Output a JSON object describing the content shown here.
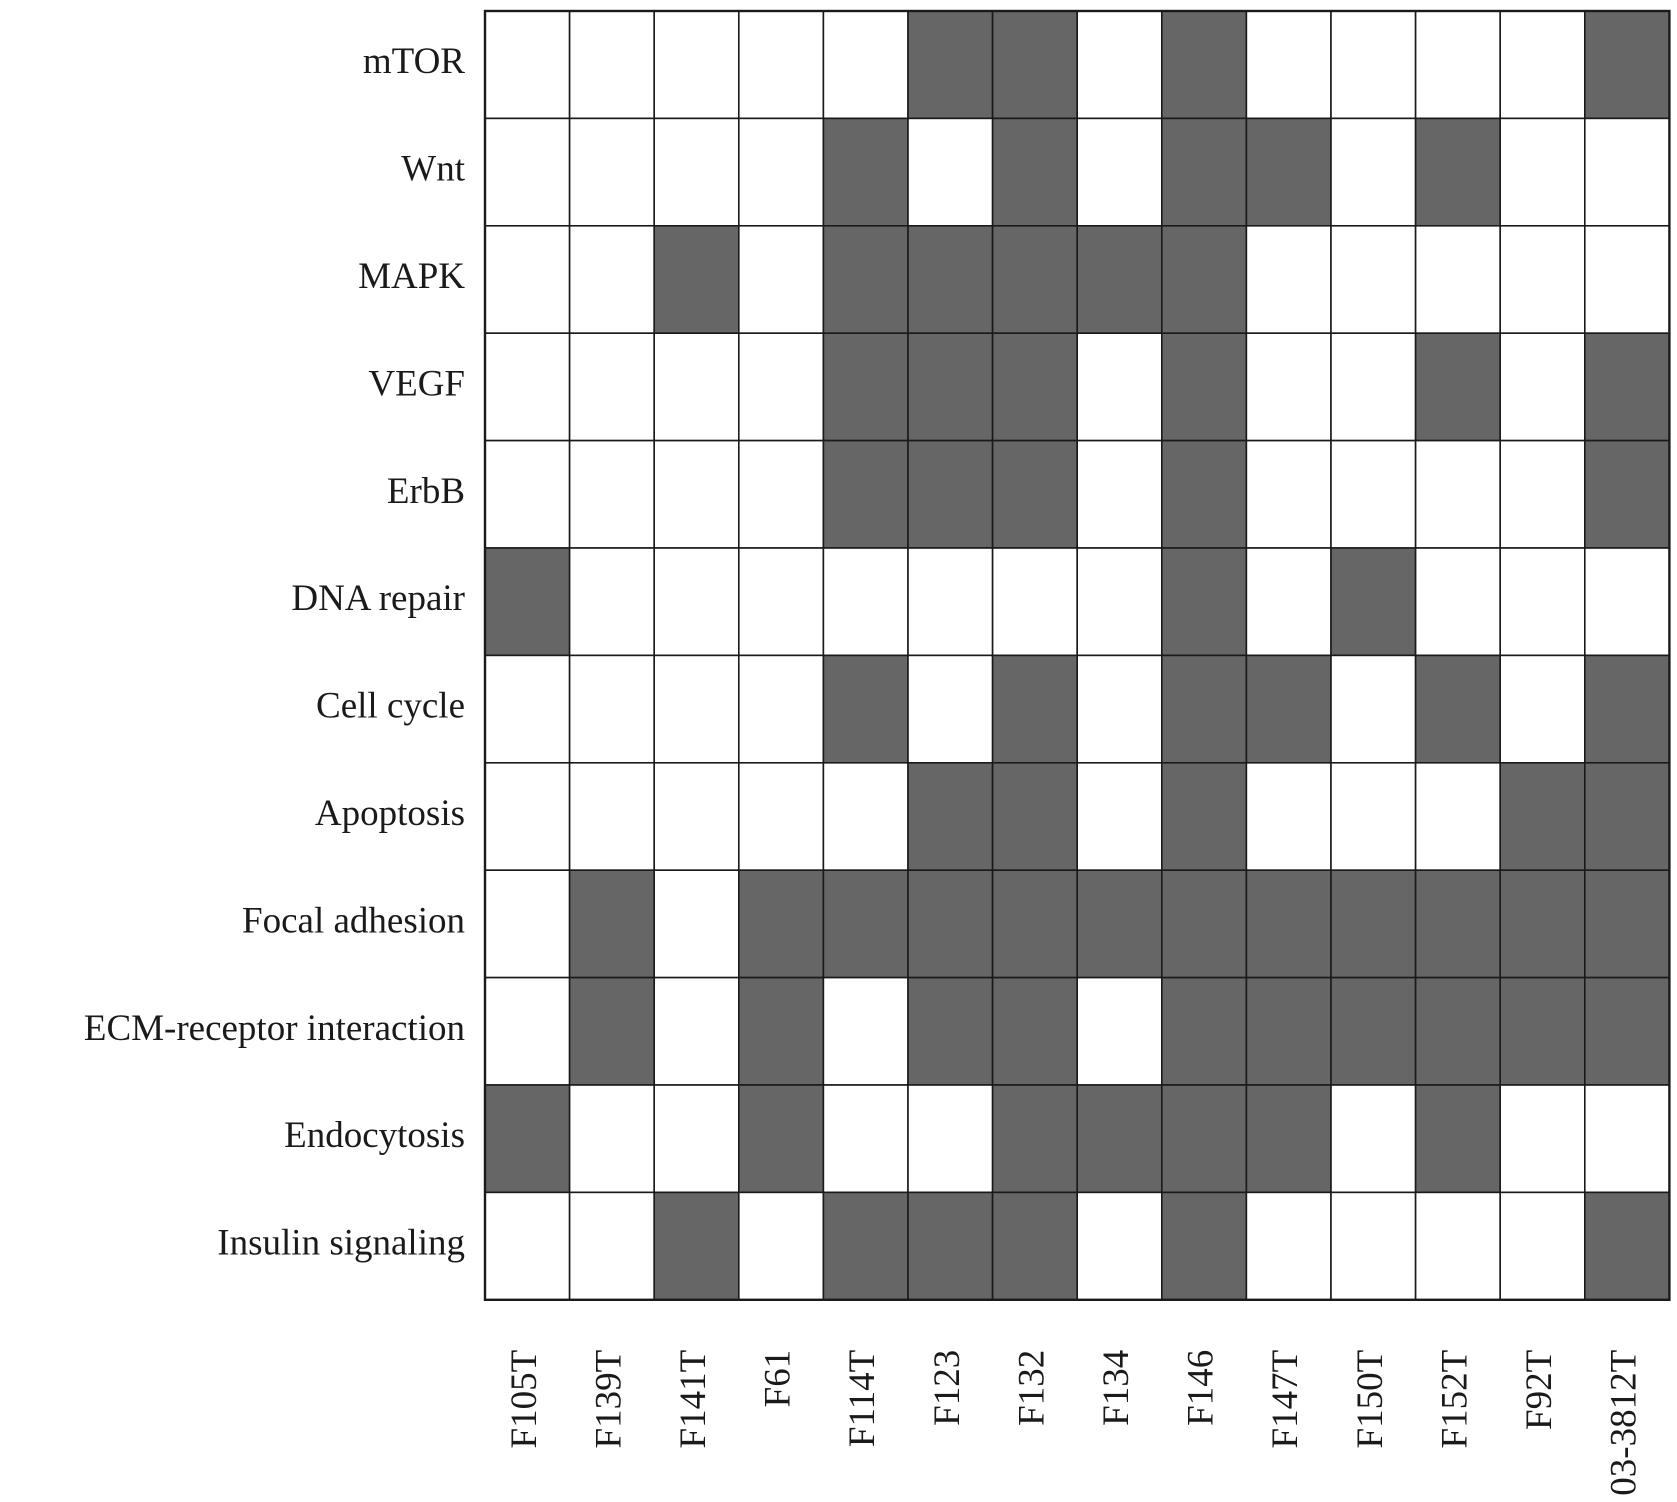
{
  "chart_data": {
    "type": "heatmap",
    "title": "",
    "xlabel": "",
    "ylabel": "",
    "grid": true,
    "colors": {
      "present": "#666666",
      "absent": "#ffffff",
      "border": "#1a1a1a"
    },
    "rows": [
      "mTOR",
      "Wnt",
      "MAPK",
      "VEGF",
      "ErbB",
      "DNA repair",
      "Cell cycle",
      "Apoptosis",
      "Focal adhesion",
      "ECM-receptor interaction",
      "Endocytosis",
      "Insulin signaling"
    ],
    "columns": [
      "F105T",
      "F139T",
      "F141T",
      "F61",
      "F114T",
      "F123",
      "F132",
      "F134",
      "F146",
      "F147T",
      "F150T",
      "F152T",
      "F92T",
      "03-3812T"
    ],
    "values": [
      [
        0,
        0,
        0,
        0,
        0,
        1,
        1,
        0,
        1,
        0,
        0,
        0,
        0,
        1
      ],
      [
        0,
        0,
        0,
        0,
        1,
        0,
        1,
        0,
        1,
        1,
        0,
        1,
        0,
        0
      ],
      [
        0,
        0,
        1,
        0,
        1,
        1,
        1,
        1,
        1,
        0,
        0,
        0,
        0,
        0
      ],
      [
        0,
        0,
        0,
        0,
        1,
        1,
        1,
        0,
        1,
        0,
        0,
        1,
        0,
        1
      ],
      [
        0,
        0,
        0,
        0,
        1,
        1,
        1,
        0,
        1,
        0,
        0,
        0,
        0,
        1
      ],
      [
        1,
        0,
        0,
        0,
        0,
        0,
        0,
        0,
        1,
        0,
        1,
        0,
        0,
        0
      ],
      [
        0,
        0,
        0,
        0,
        1,
        0,
        1,
        0,
        1,
        1,
        0,
        1,
        0,
        1
      ],
      [
        0,
        0,
        0,
        0,
        0,
        1,
        1,
        0,
        1,
        0,
        0,
        0,
        1,
        1
      ],
      [
        0,
        1,
        0,
        1,
        1,
        1,
        1,
        1,
        1,
        1,
        1,
        1,
        1,
        1
      ],
      [
        0,
        1,
        0,
        1,
        0,
        1,
        1,
        0,
        1,
        1,
        1,
        1,
        1,
        1
      ],
      [
        1,
        0,
        0,
        1,
        0,
        0,
        1,
        1,
        1,
        1,
        0,
        1,
        0,
        0
      ],
      [
        0,
        0,
        1,
        0,
        1,
        1,
        1,
        0,
        1,
        0,
        0,
        0,
        0,
        1
      ]
    ]
  }
}
